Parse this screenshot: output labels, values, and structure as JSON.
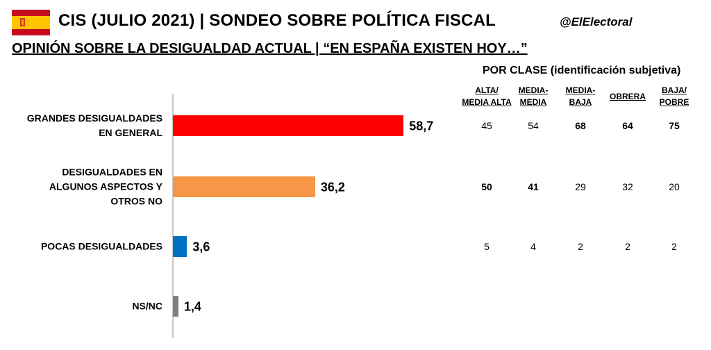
{
  "header": {
    "title": "CIS (JULIO 2021) | SONDEO SOBRE POLÍTICA FISCAL",
    "handle": "@ElElectoral",
    "subtitle": "OPINIÓN SOBRE LA DESIGUALDAD ACTUAL | “EN ESPAÑA EXISTEN HOY…”",
    "flag_icon": "spain-flag-icon",
    "flag_colors": {
      "red": "#c60b1e",
      "yellow": "#ffc400"
    }
  },
  "chart_data": {
    "type": "bar",
    "orientation": "horizontal",
    "categories": [
      "GRANDES DESIGUALDADES\nEN GENERAL",
      "DESIGUALDADES EN\nALGUNOS ASPECTOS Y\nOTROS NO",
      "POCAS DESIGUALDADES",
      "NS/NC"
    ],
    "values": [
      58.7,
      36.2,
      3.6,
      1.4
    ],
    "value_labels": [
      "58,7",
      "36,2",
      "3,6",
      "1,4"
    ],
    "colors": [
      "#ff0000",
      "#f79646",
      "#0070c0",
      "#7f7f7f"
    ],
    "xlim": [
      0,
      100
    ],
    "grid": false,
    "legend": "none"
  },
  "class_table": {
    "header": "POR CLASE (identificación subjetiva)",
    "columns": [
      "ALTA/\nMEDIA ALTA",
      "MEDIA-\nMEDIA",
      "MEDIA-\nBAJA",
      "OBRERA",
      "BAJA/\nPOBRE"
    ],
    "rows": [
      [
        "45",
        "54",
        "68",
        "64",
        "75"
      ],
      [
        "50",
        "41",
        "29",
        "32",
        "20"
      ],
      [
        "5",
        "4",
        "2",
        "2",
        "2"
      ]
    ],
    "bold_cells": [
      [
        false,
        false,
        true,
        true,
        true
      ],
      [
        true,
        true,
        false,
        false,
        false
      ],
      [
        false,
        false,
        false,
        false,
        false
      ]
    ]
  }
}
